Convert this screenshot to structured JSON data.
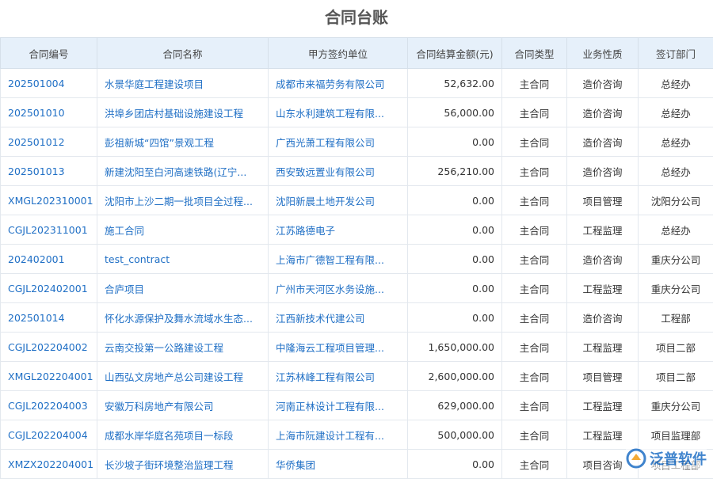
{
  "header": {
    "title": "合同台账"
  },
  "table": {
    "columns": [
      "合同编号",
      "合同名称",
      "甲方签约单位",
      "合同结算金额(元)",
      "合同类型",
      "业务性质",
      "签订部门"
    ],
    "rows": [
      [
        "202501004",
        "水景华庭工程建设项目",
        "成都市来福劳务有限公司",
        "52,632.00",
        "主合同",
        "造价咨询",
        "总经办"
      ],
      [
        "202501010",
        "洪埠乡团店村基础设施建设工程",
        "山东水利建筑工程有限...",
        "56,000.00",
        "主合同",
        "造价咨询",
        "总经办"
      ],
      [
        "202501012",
        "彭祖新城“四馆”景观工程",
        "广西光萧工程有限公司",
        "0.00",
        "主合同",
        "造价咨询",
        "总经办"
      ],
      [
        "202501013",
        "新建沈阳至白河高速铁路(辽宁...",
        "西安致远置业有限公司",
        "256,210.00",
        "主合同",
        "造价咨询",
        "总经办"
      ],
      [
        "XMGL202310001",
        "沈阳市上沙二期一批项目全过程...",
        "沈阳新晨土地开发公司",
        "0.00",
        "主合同",
        "项目管理",
        "沈阳分公司"
      ],
      [
        "CGJL202311001",
        "施工合同",
        "江苏路德电子",
        "0.00",
        "主合同",
        "工程监理",
        "总经办"
      ],
      [
        "202402001",
        "test_contract",
        "上海市广德智工程有限...",
        "0.00",
        "主合同",
        "造价咨询",
        "重庆分公司"
      ],
      [
        "CGJL202402001",
        "合庐项目",
        "广州市天河区水务设施...",
        "0.00",
        "主合同",
        "工程监理",
        "重庆分公司"
      ],
      [
        "202501014",
        "怀化水源保护及舞水流域水生态...",
        "江西新技术代建公司",
        "0.00",
        "主合同",
        "造价咨询",
        "工程部"
      ],
      [
        "CGJL202204002",
        "云南交投第一公路建设工程",
        "中隆海云工程项目管理...",
        "1,650,000.00",
        "主合同",
        "工程监理",
        "项目二部"
      ],
      [
        "XMGL202204001",
        "山西弘文房地产总公司建设工程",
        "江苏林峰工程有限公司",
        "2,600,000.00",
        "主合同",
        "项目管理",
        "项目二部"
      ],
      [
        "CGJL202204003",
        "安徽万科房地产有限公司",
        "河南正林设计工程有限...",
        "629,000.00",
        "主合同",
        "工程监理",
        "重庆分公司"
      ],
      [
        "CGJL202204004",
        "成都水岸华庭名苑项目一标段",
        "上海市阮建设计工程有...",
        "500,000.00",
        "主合同",
        "工程监理",
        "项目监理部"
      ],
      [
        "XMZX202204001",
        "长沙坡子街环境整治监理工程",
        "华侨集团",
        "0.00",
        "主合同",
        "项目咨询",
        "项目工程部"
      ]
    ]
  },
  "watermark": {
    "text": "泛普软件"
  }
}
